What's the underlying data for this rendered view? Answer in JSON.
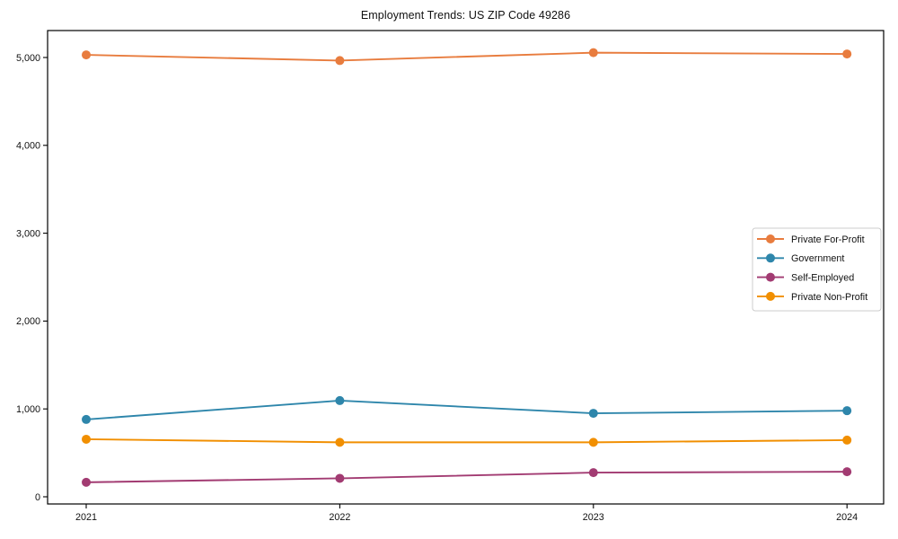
{
  "figure": {
    "background": "#ffffff",
    "frame_color": "#000000",
    "tick_label_color": "#111111"
  },
  "chart_data": {
    "type": "line",
    "title": "Employment Trends: US ZIP Code 49286",
    "xlabel": "",
    "ylabel": "",
    "categories": [
      "2021",
      "2022",
      "2023",
      "2024"
    ],
    "series": [
      {
        "name": "Private For-Profit",
        "color": "#E87C3E",
        "values": [
          5030,
          4965,
          5055,
          5040
        ]
      },
      {
        "name": "Government",
        "color": "#2E86AB",
        "values": [
          880,
          1095,
          950,
          980
        ]
      },
      {
        "name": "Self-Employed",
        "color": "#A23B72",
        "values": [
          165,
          210,
          275,
          285
        ]
      },
      {
        "name": "Private Non-Profit",
        "color": "#F18F01",
        "values": [
          655,
          620,
          620,
          645
        ]
      }
    ],
    "yticks": [
      0,
      1000,
      2000,
      3000,
      4000,
      5000
    ],
    "ytick_labels": [
      "0",
      "1,000",
      "2,000",
      "3,000",
      "4,000",
      "5,000"
    ],
    "ylim": [
      -100,
      5320
    ],
    "grid": false,
    "marker": "circle",
    "legend_position": "center right",
    "legend_border_color": "#cccccc",
    "legend_background": "#ffffff"
  }
}
